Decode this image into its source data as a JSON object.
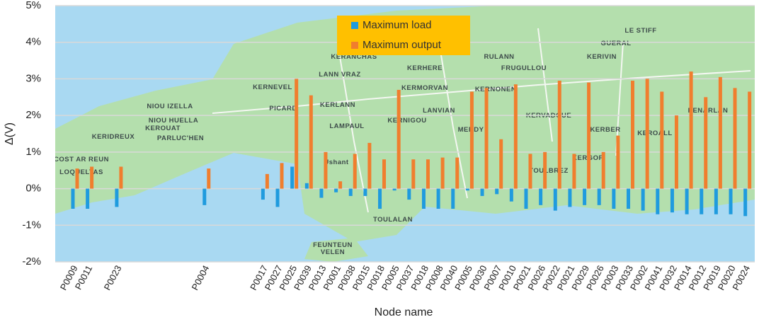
{
  "chart_data": {
    "type": "bar",
    "x_label": "Node name",
    "y_label": "Δ(V)",
    "categories": [
      null,
      "P0009",
      "P0011",
      null,
      "P0023",
      null,
      null,
      null,
      null,
      null,
      "P0004",
      null,
      null,
      null,
      "P0017",
      "P0027",
      "P0025",
      "P0039",
      "P0013",
      "P0001",
      "P0038",
      "P0015",
      "P0018",
      "P0005",
      "P0037",
      "P0018",
      "P0008",
      "P0040",
      "P0005",
      "P0030",
      "P0007",
      "P0010",
      "P0021",
      "P0026",
      "P0022",
      "P0021",
      "P0029",
      "P0026",
      "P0003",
      "P0033",
      "P0002",
      "P0041",
      "P0032",
      "P0014",
      "P0012",
      "P0019",
      "P0020",
      "P0024"
    ],
    "series": [
      {
        "name": "Maximum load",
        "color": "#1f9bde",
        "values": [
          null,
          -0.55,
          -0.55,
          null,
          -0.5,
          null,
          null,
          null,
          null,
          null,
          -0.45,
          null,
          null,
          null,
          -0.3,
          -0.5,
          0.6,
          0.15,
          -0.25,
          -0.1,
          -0.2,
          -0.2,
          -0.55,
          -0.05,
          -0.3,
          -0.55,
          -0.55,
          -0.55,
          -0.05,
          -0.2,
          -0.15,
          -0.35,
          -0.55,
          -0.45,
          -0.6,
          -0.5,
          -0.45,
          -0.45,
          -0.55,
          -0.55,
          -0.6,
          -0.7,
          -0.65,
          -0.7,
          -0.7,
          -0.7,
          -0.7,
          -0.75
        ]
      },
      {
        "name": "Maximum output",
        "color": "#f07e2e",
        "values": [
          null,
          0.55,
          0.6,
          null,
          0.6,
          null,
          null,
          null,
          null,
          null,
          0.55,
          null,
          null,
          null,
          0.4,
          0.7,
          3.0,
          2.55,
          1.0,
          0.2,
          0.95,
          1.25,
          0.8,
          2.7,
          0.8,
          0.8,
          0.85,
          0.85,
          2.65,
          2.75,
          1.35,
          2.85,
          0.95,
          1.0,
          2.95,
          0.95,
          2.9,
          1.0,
          1.45,
          2.95,
          3.0,
          2.65,
          2.0,
          3.2,
          2.5,
          3.05,
          2.75,
          2.65
        ]
      }
    ],
    "ylim": [
      -2,
      5
    ],
    "yticks": [
      {
        "value": -2,
        "label": "-2%"
      },
      {
        "value": -1,
        "label": "-1%"
      },
      {
        "value": 0,
        "label": "0%"
      },
      {
        "value": 1,
        "label": "1%"
      },
      {
        "value": 2,
        "label": "2%"
      },
      {
        "value": 3,
        "label": "3%"
      },
      {
        "value": 4,
        "label": "4%"
      },
      {
        "value": 5,
        "label": "5%"
      }
    ],
    "grid": true,
    "legend_position": "top",
    "legend_color": "#ffc000",
    "map_labels": [
      "LE STIFF",
      "GUERAL",
      "KERIVIN",
      "RULANN",
      "FRUGULLOU",
      "KERANCHAS",
      "KERHERE",
      "KERNEVEL",
      "LANN VRAZ",
      "KERMORVAN",
      "KERNONEN",
      "NIOU IZELLA",
      "PICARD",
      "KERLANN",
      "LANVIAN",
      "KERVADOUE",
      "NIOU HUELLA",
      "KERNIGOU",
      "KEROUAT",
      "KERIDREUX",
      "PARLUC'HEN",
      "LAMPAUL",
      "MERDY",
      "KERBER",
      "KEROALL",
      "PENARLAN",
      "COST AR REUN",
      "LOQUELTAS",
      "Ushant",
      "TOULBREZ",
      "KERGOF",
      "TOULALAN",
      "FEUNTEUN",
      "VELEN"
    ]
  }
}
